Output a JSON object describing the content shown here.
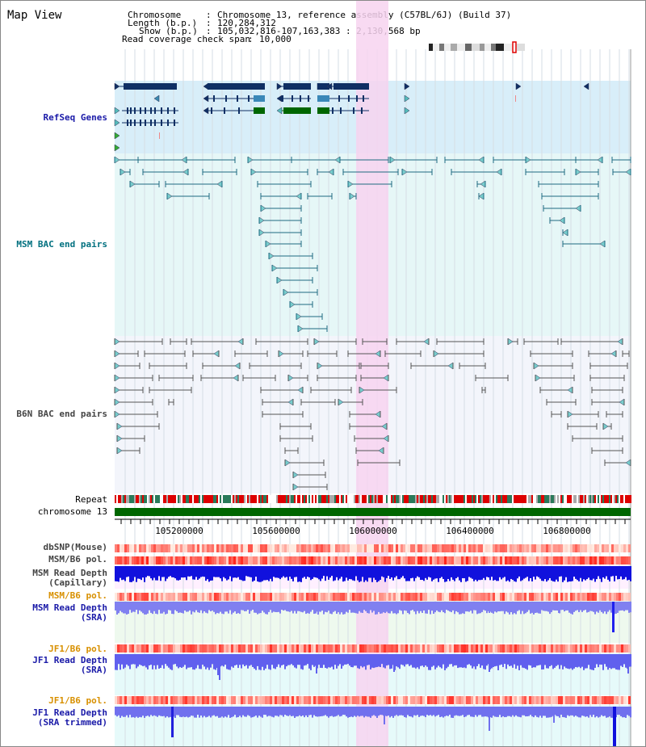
{
  "title": "Map View",
  "info": {
    "chromosome_key": "Chromosome",
    "chromosome_val": "Chromosome 13, reference assembly (C57BL/6J) (Build 37)",
    "length_key": "Length (b.p.)",
    "length_val": "120,284,312",
    "show_key": "Show (b.p.)",
    "show_val": "105,032,816-107,163,383 : 2,130,568 bp",
    "span_key": "Read coverage check span",
    "span_val": "10,000"
  },
  "tracks": {
    "refseq": "RefSeq Genes",
    "msm_bac": "MSM BAC end pairs",
    "b6n_bac": "B6N BAC end pairs",
    "repeat": "Repeat",
    "chromosome": "chromosome 13",
    "dbsnp": "dbSNP(Mouse)",
    "msm_b6_pol": "MSM/B6 pol.",
    "msm_depth_cap_1": "MSM Read Depth",
    "msm_depth_cap_2": "(Capillary)",
    "msm_b6_pol_2": "MSM/B6 pol.",
    "msm_depth_sra_1": "MSM Read Depth",
    "msm_depth_sra_2": "(SRA)",
    "jf1_b6_pol": "JF1/B6 pol.",
    "jf1_depth_sra_1": "JF1 Read Depth",
    "jf1_depth_sra_2": "(SRA)",
    "jf1_b6_pol_2": "JF1/B6 pol.",
    "jf1_depth_trim_1": "JF1 Read Depth",
    "jf1_depth_trim_2": "(SRA trimmed)"
  },
  "axis": {
    "ticks": [
      "105200000",
      "105600000",
      "106000000",
      "106400000",
      "106800000"
    ]
  },
  "colors": {
    "refseq_bg": "#d8eef9",
    "msm_bg": "#e6f7f7",
    "b6n_bg": "#f3f5fb",
    "highlight": "#f7d4f0",
    "dark_blue": "#0f2f64",
    "teal": "#1e6a80",
    "gray": "#555555",
    "green": "#006600",
    "label_blue": "#1a1aa8",
    "label_teal": "#00707f",
    "label_orange": "#d89000",
    "label_gray": "#444444"
  }
}
